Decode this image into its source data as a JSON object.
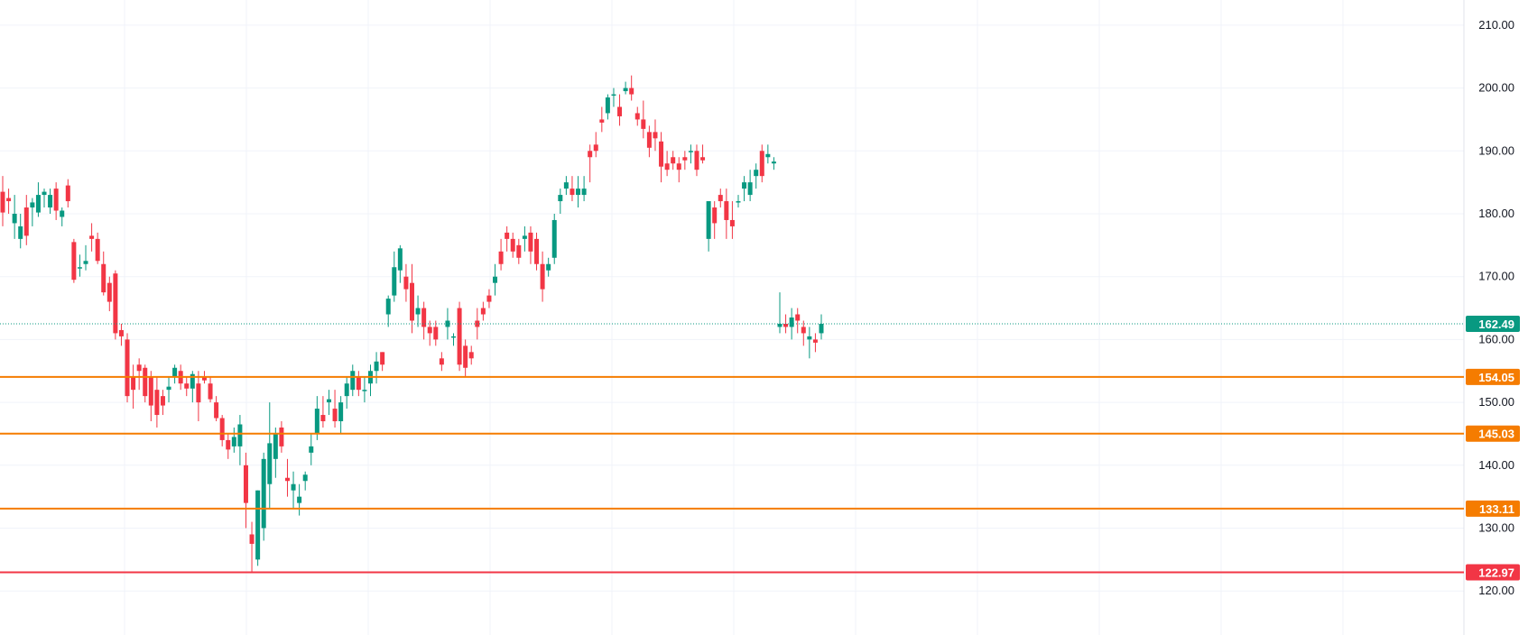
{
  "chart_data": {
    "type": "candlestick",
    "title": "",
    "xlabel": "",
    "ylabel": "",
    "ylim": [
      113,
      214
    ],
    "grid": true,
    "y_ticks": [
      "120.00",
      "130.00",
      "140.00",
      "150.00",
      "160.00",
      "170.00",
      "180.00",
      "190.00",
      "200.00",
      "210.00"
    ],
    "last_price": {
      "value": 162.49,
      "label": "162.49",
      "color": "#089981"
    },
    "levels": [
      {
        "value": 154.05,
        "label": "154.05",
        "color": "#f57c00"
      },
      {
        "value": 145.03,
        "label": "145.03",
        "color": "#f57c00"
      },
      {
        "value": 133.11,
        "label": "133.11",
        "color": "#f57c00"
      },
      {
        "value": 122.97,
        "label": "122.97",
        "color": "#f23645"
      }
    ],
    "colors": {
      "up": "#089981",
      "down": "#f23645"
    },
    "candles": [
      [
        183.5,
        186,
        178,
        180.2
      ],
      [
        182.5,
        184,
        180,
        182
      ],
      [
        178.5,
        183,
        176,
        180
      ],
      [
        176,
        180,
        174.5,
        178
      ],
      [
        181,
        183,
        175,
        176.5
      ],
      [
        181,
        182.5,
        178,
        181.8
      ],
      [
        180.2,
        185,
        179.5,
        183
      ],
      [
        183,
        184,
        181,
        183.5
      ],
      [
        181,
        184,
        180,
        183
      ],
      [
        184,
        185,
        179,
        180.5
      ],
      [
        179.5,
        181,
        178,
        180.5
      ],
      [
        184.5,
        185.5,
        181,
        182
      ],
      [
        175.5,
        176,
        169,
        169.5
      ],
      [
        171.5,
        173.5,
        170,
        171.5
      ],
      [
        172,
        175,
        171,
        172.5
      ],
      [
        176.5,
        178.5,
        174,
        176
      ],
      [
        176,
        177,
        172,
        172.5
      ],
      [
        172,
        174,
        167,
        167.5
      ],
      [
        169,
        170,
        164.5,
        166
      ],
      [
        170.5,
        171,
        160,
        161
      ],
      [
        161.5,
        162.5,
        159,
        160.5
      ],
      [
        160,
        161,
        150,
        151
      ],
      [
        154,
        156,
        149,
        152
      ],
      [
        156,
        157,
        152,
        155
      ],
      [
        155.5,
        156,
        150,
        151
      ],
      [
        154,
        155,
        147,
        149.5
      ],
      [
        152,
        154,
        146,
        148
      ],
      [
        151,
        152,
        148,
        149.5
      ],
      [
        152,
        154,
        150,
        152.5
      ],
      [
        154,
        156,
        153,
        155.5
      ],
      [
        155,
        156,
        152,
        153
      ],
      [
        153,
        154,
        151,
        152.2
      ],
      [
        152.2,
        155,
        150,
        154.5
      ],
      [
        153,
        155,
        147,
        150
      ],
      [
        154,
        155,
        153,
        153.5
      ],
      [
        153,
        154,
        150,
        150.5
      ],
      [
        150,
        151,
        147,
        147.5
      ],
      [
        147.5,
        148,
        143,
        144
      ],
      [
        144,
        145,
        141,
        142.5
      ],
      [
        143,
        146,
        142,
        144.5
      ],
      [
        143,
        148,
        140,
        146.5
      ],
      [
        140,
        142,
        130,
        134
      ],
      [
        129,
        131,
        123,
        127.5
      ],
      [
        125,
        136,
        124,
        136
      ],
      [
        130,
        142,
        128,
        141
      ],
      [
        137,
        150,
        133,
        143.5
      ],
      [
        141,
        146,
        138,
        145
      ],
      [
        146,
        147,
        142,
        143
      ],
      [
        138,
        141,
        135,
        137.5
      ],
      [
        136,
        139,
        133,
        137
      ],
      [
        134,
        137,
        132,
        135
      ],
      [
        137.5,
        139,
        136,
        138.5
      ],
      [
        142,
        145,
        140,
        143
      ],
      [
        145,
        151,
        144,
        149
      ],
      [
        148,
        151,
        146,
        147
      ],
      [
        150,
        152,
        148,
        150.5
      ],
      [
        149,
        152,
        146,
        147
      ],
      [
        147,
        151,
        145,
        150
      ],
      [
        151,
        154,
        149,
        153
      ],
      [
        152,
        156,
        151,
        155
      ],
      [
        154,
        155,
        151,
        152
      ],
      [
        152,
        154,
        150,
        152
      ],
      [
        153,
        156,
        151,
        155
      ],
      [
        155,
        158,
        153,
        156.5
      ],
      [
        158,
        158,
        155,
        156
      ],
      [
        164,
        167,
        162,
        166.5
      ],
      [
        167,
        174,
        166,
        171.5
      ],
      [
        171,
        175,
        169,
        174.5
      ],
      [
        170,
        172,
        166,
        168
      ],
      [
        169,
        172,
        161,
        163
      ],
      [
        164,
        167,
        162,
        165
      ],
      [
        165,
        166,
        160,
        162
      ],
      [
        162,
        163,
        159,
        161
      ],
      [
        162,
        163,
        159,
        160
      ],
      [
        157,
        158,
        155,
        156
      ],
      [
        162,
        165,
        160,
        163
      ],
      [
        160.5,
        161,
        159,
        160.5
      ],
      [
        165,
        166,
        155,
        156
      ],
      [
        159,
        160,
        154,
        155.5
      ],
      [
        158,
        159,
        156,
        157
      ],
      [
        163,
        165,
        160,
        162
      ],
      [
        165,
        166,
        163,
        164
      ],
      [
        167,
        168,
        165,
        166
      ],
      [
        169,
        172,
        167,
        170
      ],
      [
        174,
        176,
        171,
        172
      ],
      [
        177,
        178,
        174,
        176
      ],
      [
        176,
        177,
        173,
        174
      ],
      [
        175,
        176,
        172,
        173
      ],
      [
        176,
        178,
        174,
        176.5
      ],
      [
        177,
        178,
        172,
        174
      ],
      [
        176,
        177,
        171,
        172
      ],
      [
        172,
        174,
        166,
        168
      ],
      [
        171,
        173,
        170,
        172
      ],
      [
        173,
        180,
        172,
        179
      ],
      [
        182,
        184,
        180,
        183
      ],
      [
        184,
        186,
        183,
        185
      ],
      [
        184,
        186,
        182,
        183
      ],
      [
        183,
        186,
        181,
        184
      ],
      [
        183,
        186,
        182,
        184
      ],
      [
        190,
        191,
        185,
        189
      ],
      [
        191,
        193,
        189,
        190
      ],
      [
        195,
        197,
        193,
        194.5
      ],
      [
        196,
        199,
        195,
        198.5
      ],
      [
        199,
        200,
        197,
        199
      ],
      [
        197,
        199,
        194,
        195.5
      ],
      [
        199.5,
        201,
        199,
        200
      ],
      [
        200,
        202,
        198,
        199
      ],
      [
        196,
        197,
        194,
        195
      ],
      [
        195,
        198,
        192,
        193.5
      ],
      [
        193,
        194,
        189,
        190.5
      ],
      [
        193,
        195,
        190,
        192
      ],
      [
        191.5,
        193,
        185,
        187.5
      ],
      [
        188,
        190,
        186,
        187
      ],
      [
        189,
        190,
        187,
        188
      ],
      [
        188,
        189,
        185,
        187
      ],
      [
        189,
        190,
        187,
        188.5
      ],
      [
        190,
        191,
        188,
        190
      ],
      [
        190,
        191,
        186,
        187
      ],
      [
        189,
        191,
        188,
        188.5
      ],
      [
        176,
        182,
        174,
        182
      ],
      [
        181,
        182,
        176,
        178.5
      ],
      [
        183,
        184,
        181,
        182
      ],
      [
        182,
        184,
        176,
        179
      ],
      [
        179,
        182,
        176,
        178
      ],
      [
        182,
        183,
        181,
        182
      ],
      [
        184,
        186,
        182,
        185
      ],
      [
        183,
        187,
        182,
        185
      ],
      [
        186,
        188,
        184,
        187
      ],
      [
        190,
        191,
        185,
        186
      ],
      [
        189,
        191,
        188,
        189.5
      ],
      [
        188,
        189,
        187,
        188.3
      ],
      [
        162,
        167.5,
        161,
        162.5
      ],
      [
        162.5,
        164,
        161,
        162
      ],
      [
        162,
        165,
        160,
        163.5
      ],
      [
        164,
        165,
        161,
        163
      ],
      [
        162,
        163,
        159,
        161
      ],
      [
        160,
        162,
        157,
        160.5
      ],
      [
        160,
        161,
        158,
        159.5
      ],
      [
        161,
        164,
        160,
        162.49
      ]
    ]
  }
}
